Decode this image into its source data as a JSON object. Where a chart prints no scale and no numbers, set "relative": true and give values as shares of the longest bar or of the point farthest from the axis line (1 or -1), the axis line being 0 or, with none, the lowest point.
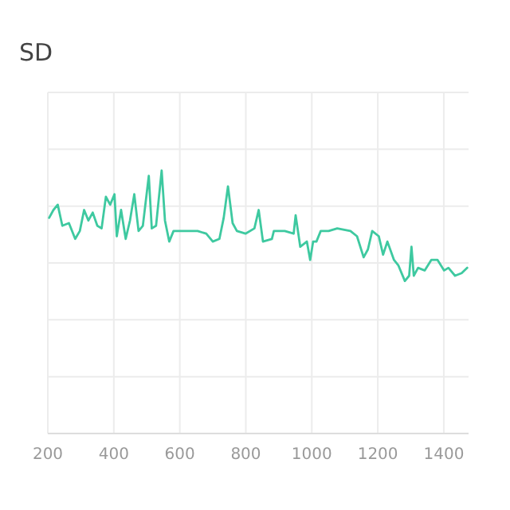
{
  "chart_data": {
    "type": "line",
    "title": "SD",
    "relative": true,
    "grid": true,
    "color": "#3ec9a0",
    "xlim": [
      200,
      1475
    ],
    "xticks": [
      200,
      400,
      600,
      800,
      1000,
      1200,
      1400
    ],
    "x": [
      204,
      217,
      230,
      244,
      264,
      283,
      297,
      310,
      323,
      336,
      350,
      363,
      376,
      389,
      402,
      409,
      422,
      436,
      449,
      462,
      475,
      488,
      506,
      515,
      528,
      545,
      555,
      568,
      581,
      594,
      614,
      654,
      680,
      700,
      720,
      733,
      746,
      760,
      773,
      799,
      826,
      839,
      852,
      879,
      885,
      918,
      945,
      951,
      965,
      985,
      995,
      1004,
      1014,
      1027,
      1051,
      1077,
      1117,
      1137,
      1157,
      1170,
      1183,
      1203,
      1216,
      1229,
      1249,
      1262,
      1282,
      1295,
      1302,
      1309,
      1322,
      1342,
      1362,
      1381,
      1401,
      1414,
      1434,
      1454,
      1471
    ],
    "values": [
      0.82,
      0.85,
      0.87,
      0.79,
      0.8,
      0.74,
      0.77,
      0.85,
      0.81,
      0.84,
      0.79,
      0.78,
      0.9,
      0.87,
      0.91,
      0.75,
      0.85,
      0.74,
      0.81,
      0.91,
      0.77,
      0.79,
      0.98,
      0.78,
      0.79,
      1,
      0.81,
      0.73,
      0.77,
      0.77,
      0.77,
      0.77,
      0.76,
      0.73,
      0.74,
      0.82,
      0.94,
      0.8,
      0.77,
      0.76,
      0.78,
      0.85,
      0.73,
      0.74,
      0.77,
      0.77,
      0.76,
      0.83,
      0.71,
      0.73,
      0.66,
      0.73,
      0.73,
      0.77,
      0.77,
      0.78,
      0.77,
      0.75,
      0.67,
      0.7,
      0.77,
      0.75,
      0.68,
      0.73,
      0.66,
      0.64,
      0.58,
      0.6,
      0.71,
      0.6,
      0.63,
      0.62,
      0.66,
      0.66,
      0.62,
      0.63,
      0.6,
      0.61,
      0.63
    ]
  }
}
